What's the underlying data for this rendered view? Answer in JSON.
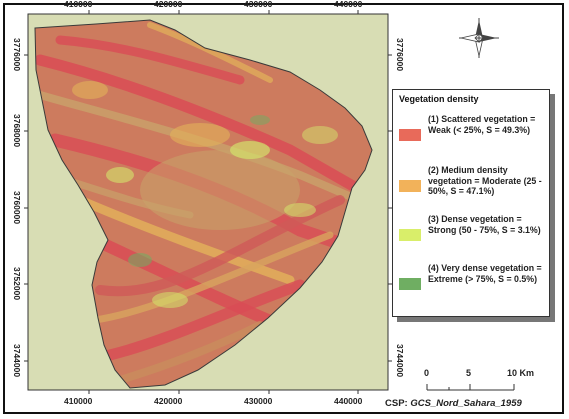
{
  "map": {
    "x_ticks": [
      "410000",
      "420000",
      "430000",
      "440000"
    ],
    "y_ticks": [
      "3776000",
      "3768000",
      "3760000",
      "3752000",
      "3744000"
    ]
  },
  "legend": {
    "title": "Vegetation density",
    "items": [
      {
        "label": "(1) Scattered vegetation = Weak (< 25%, S = 49.3%)",
        "color": "#e86a5a"
      },
      {
        "label": "(2) Medium density vegetation = Moderate (25 - 50%, S = 47.1%)",
        "color": "#f2b25a"
      },
      {
        "label": "(3) Dense vegetation = Strong (50 - 75%, S = 3.1%)",
        "color": "#d9ee6a"
      },
      {
        "label": "(4) Very dense vegetation = Extreme (> 75%, S = 0.5%)",
        "color": "#6fae62"
      }
    ]
  },
  "scalebar": {
    "labels": [
      "0",
      "5",
      "10 Km"
    ]
  },
  "crs": {
    "prefix": "CSP:",
    "name": "GCS_Nord_Sahara_1959"
  },
  "colors": {
    "background": "#d8ddb4",
    "boundary": "#3a3a3a",
    "north_arrow": "#444444"
  }
}
